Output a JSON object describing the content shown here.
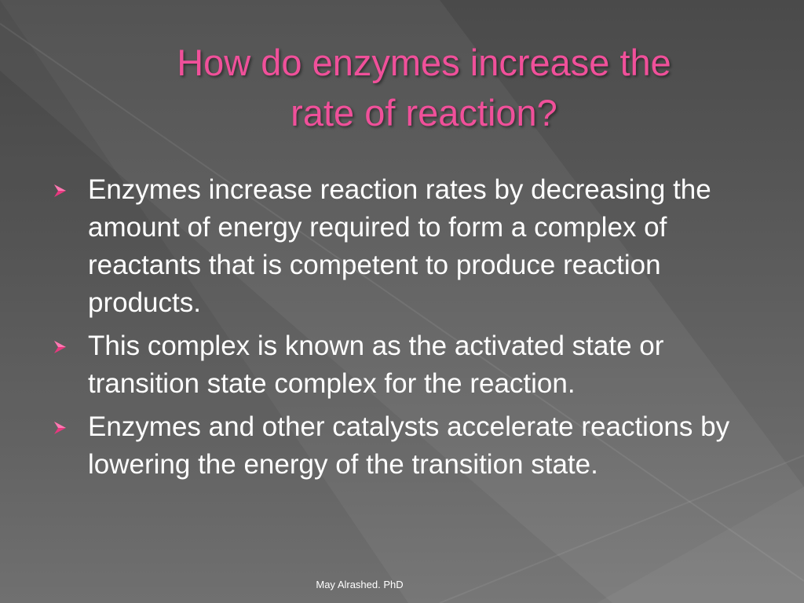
{
  "slide": {
    "title_line1": "How do enzymes increase the",
    "title_line2": "rate of reaction?",
    "bullet_icon": "arrow-bullet-icon",
    "bullets": [
      "Enzymes increase reaction rates by decreasing the amount of energy required to form a complex of reactants that is competent to produce reaction products.",
      "This complex is known as the activated state or transition state complex for the reaction.",
      "Enzymes and other catalysts accelerate reactions by lowering the energy of the transition state."
    ],
    "footer": "May Alrashed. PhD"
  },
  "colors": {
    "title": "#f0509a",
    "bullet_icon": "#e8387f",
    "body_text": "#ffffff",
    "background": "#555555"
  }
}
